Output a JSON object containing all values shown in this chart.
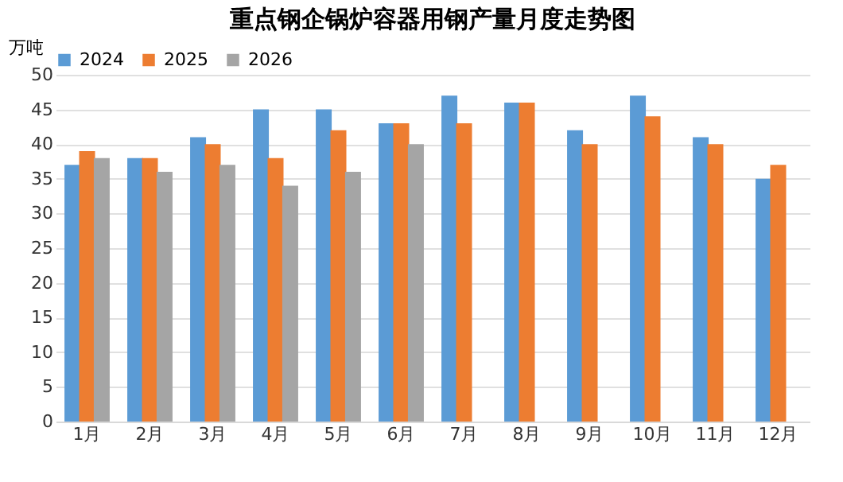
{
  "chart_data": {
    "type": "bar",
    "title": "重点钢企锅炉容器用钢产量月度走势图",
    "ylabel": "万吨",
    "categories": [
      "1月",
      "2月",
      "3月",
      "4月",
      "5月",
      "6月",
      "7月",
      "8月",
      "9月",
      "10月",
      "11月",
      "12月"
    ],
    "series": [
      {
        "name": "2024",
        "color": "#5b9bd5",
        "values": [
          37,
          38,
          41,
          45,
          45,
          43,
          47,
          46,
          42,
          47,
          41,
          35
        ]
      },
      {
        "name": "2025",
        "color": "#ed7d31",
        "values": [
          39,
          38,
          40,
          38,
          42,
          43,
          43,
          46,
          40,
          44,
          40,
          37
        ]
      },
      {
        "name": "2026",
        "color": "#a5a5a5",
        "values": [
          38,
          36,
          37,
          34,
          36,
          40,
          null,
          null,
          null,
          null,
          null,
          null
        ]
      }
    ],
    "ylim": [
      0,
      50
    ],
    "yticks": [
      0,
      5,
      10,
      15,
      20,
      25,
      30,
      35,
      40,
      45,
      50
    ],
    "grid": "y",
    "legend": "top"
  }
}
